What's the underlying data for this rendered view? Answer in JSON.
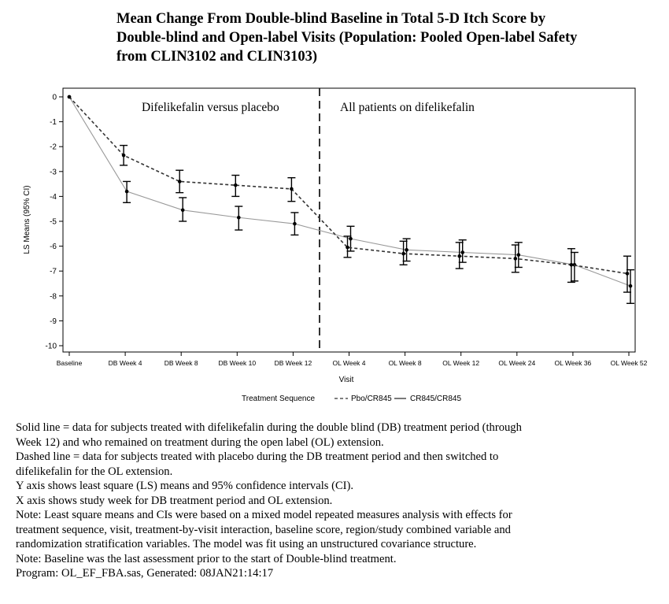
{
  "title_lines": [
    "Mean Change From Double-blind Baseline in Total 5-D Itch Score by",
    "Double-blind and Open-label Visits (Population: Pooled Open-label Safety",
    "from CLIN3102 and CLIN3103)"
  ],
  "chart_data": {
    "type": "line",
    "categories": [
      "Baseline",
      "DB Week 4",
      "DB Week 8",
      "DB Week 10",
      "DB Week 12",
      "OL Week 4",
      "OL Week 8",
      "OL Week 12",
      "OL Week 24",
      "OL Week 36",
      "OL Week 52"
    ],
    "xlabel": "Visit",
    "ylabel": "LS Means (95% CI)",
    "ylim": [
      -10,
      0
    ],
    "yticks": [
      "0",
      "-1",
      "-2",
      "-3",
      "-4",
      "-5",
      "-6",
      "-7",
      "-8",
      "-9",
      "-10"
    ],
    "legend_title": "Treatment Sequence",
    "legend_position": "bottom",
    "region_labels": [
      "Difelikefalin versus placebo",
      "All patients on difelikefalin"
    ],
    "divider_after_category": "DB Week 12",
    "series": [
      {
        "name": "Pbo/CR845",
        "line_style": "dashed",
        "color": "#333333",
        "values": [
          0,
          -2.35,
          -3.4,
          -3.55,
          -3.7,
          -6.05,
          -6.3,
          -6.4,
          -6.5,
          -6.75,
          -7.1
        ],
        "ci_low": [
          0,
          -2.75,
          -3.85,
          -4.0,
          -4.2,
          -6.45,
          -6.75,
          -6.9,
          -7.05,
          -7.45,
          -7.85
        ],
        "ci_high": [
          0,
          -1.95,
          -2.95,
          -3.15,
          -3.25,
          -5.6,
          -5.8,
          -5.85,
          -5.95,
          -6.1,
          -6.4
        ]
      },
      {
        "name": "CR845/CR845",
        "line_style": "solid",
        "color": "#999999",
        "values": [
          0,
          -3.8,
          -4.55,
          -4.85,
          -5.1,
          -5.7,
          -6.15,
          -6.25,
          -6.35,
          -6.75,
          -7.6
        ],
        "ci_low": [
          0,
          -4.25,
          -5.0,
          -5.35,
          -5.55,
          -6.2,
          -6.6,
          -6.65,
          -6.85,
          -7.4,
          -8.3
        ],
        "ci_high": [
          0,
          -3.4,
          -4.05,
          -4.4,
          -4.65,
          -5.2,
          -5.7,
          -5.75,
          -5.85,
          -6.25,
          -6.95
        ]
      }
    ]
  },
  "notes": [
    "Solid line = data for subjects treated with difelikefalin during the double blind (DB) treatment period (through",
    "Week 12) and who remained on treatment during the open label (OL) extension.",
    "Dashed line = data for subjects treated with placebo during the DB treatment period and then switched to",
    "difelikefalin for the OL extension.",
    "Y axis shows least square (LS) means and 95% confidence intervals (CI).",
    "X axis shows study week for DB treatment period and OL extension.",
    "Note: Least square means and CIs were based on a mixed model repeated measures analysis with effects for",
    "treatment sequence, visit, treatment-by-visit interaction, baseline score, region/study combined variable and",
    "randomization stratification variables. The model was fit using an unstructured covariance structure.",
    "Note: Baseline was the last assessment prior to the start of Double-blind treatment.",
    "Program: OL_EF_FBA.sas, Generated: 08JAN21:14:17"
  ]
}
